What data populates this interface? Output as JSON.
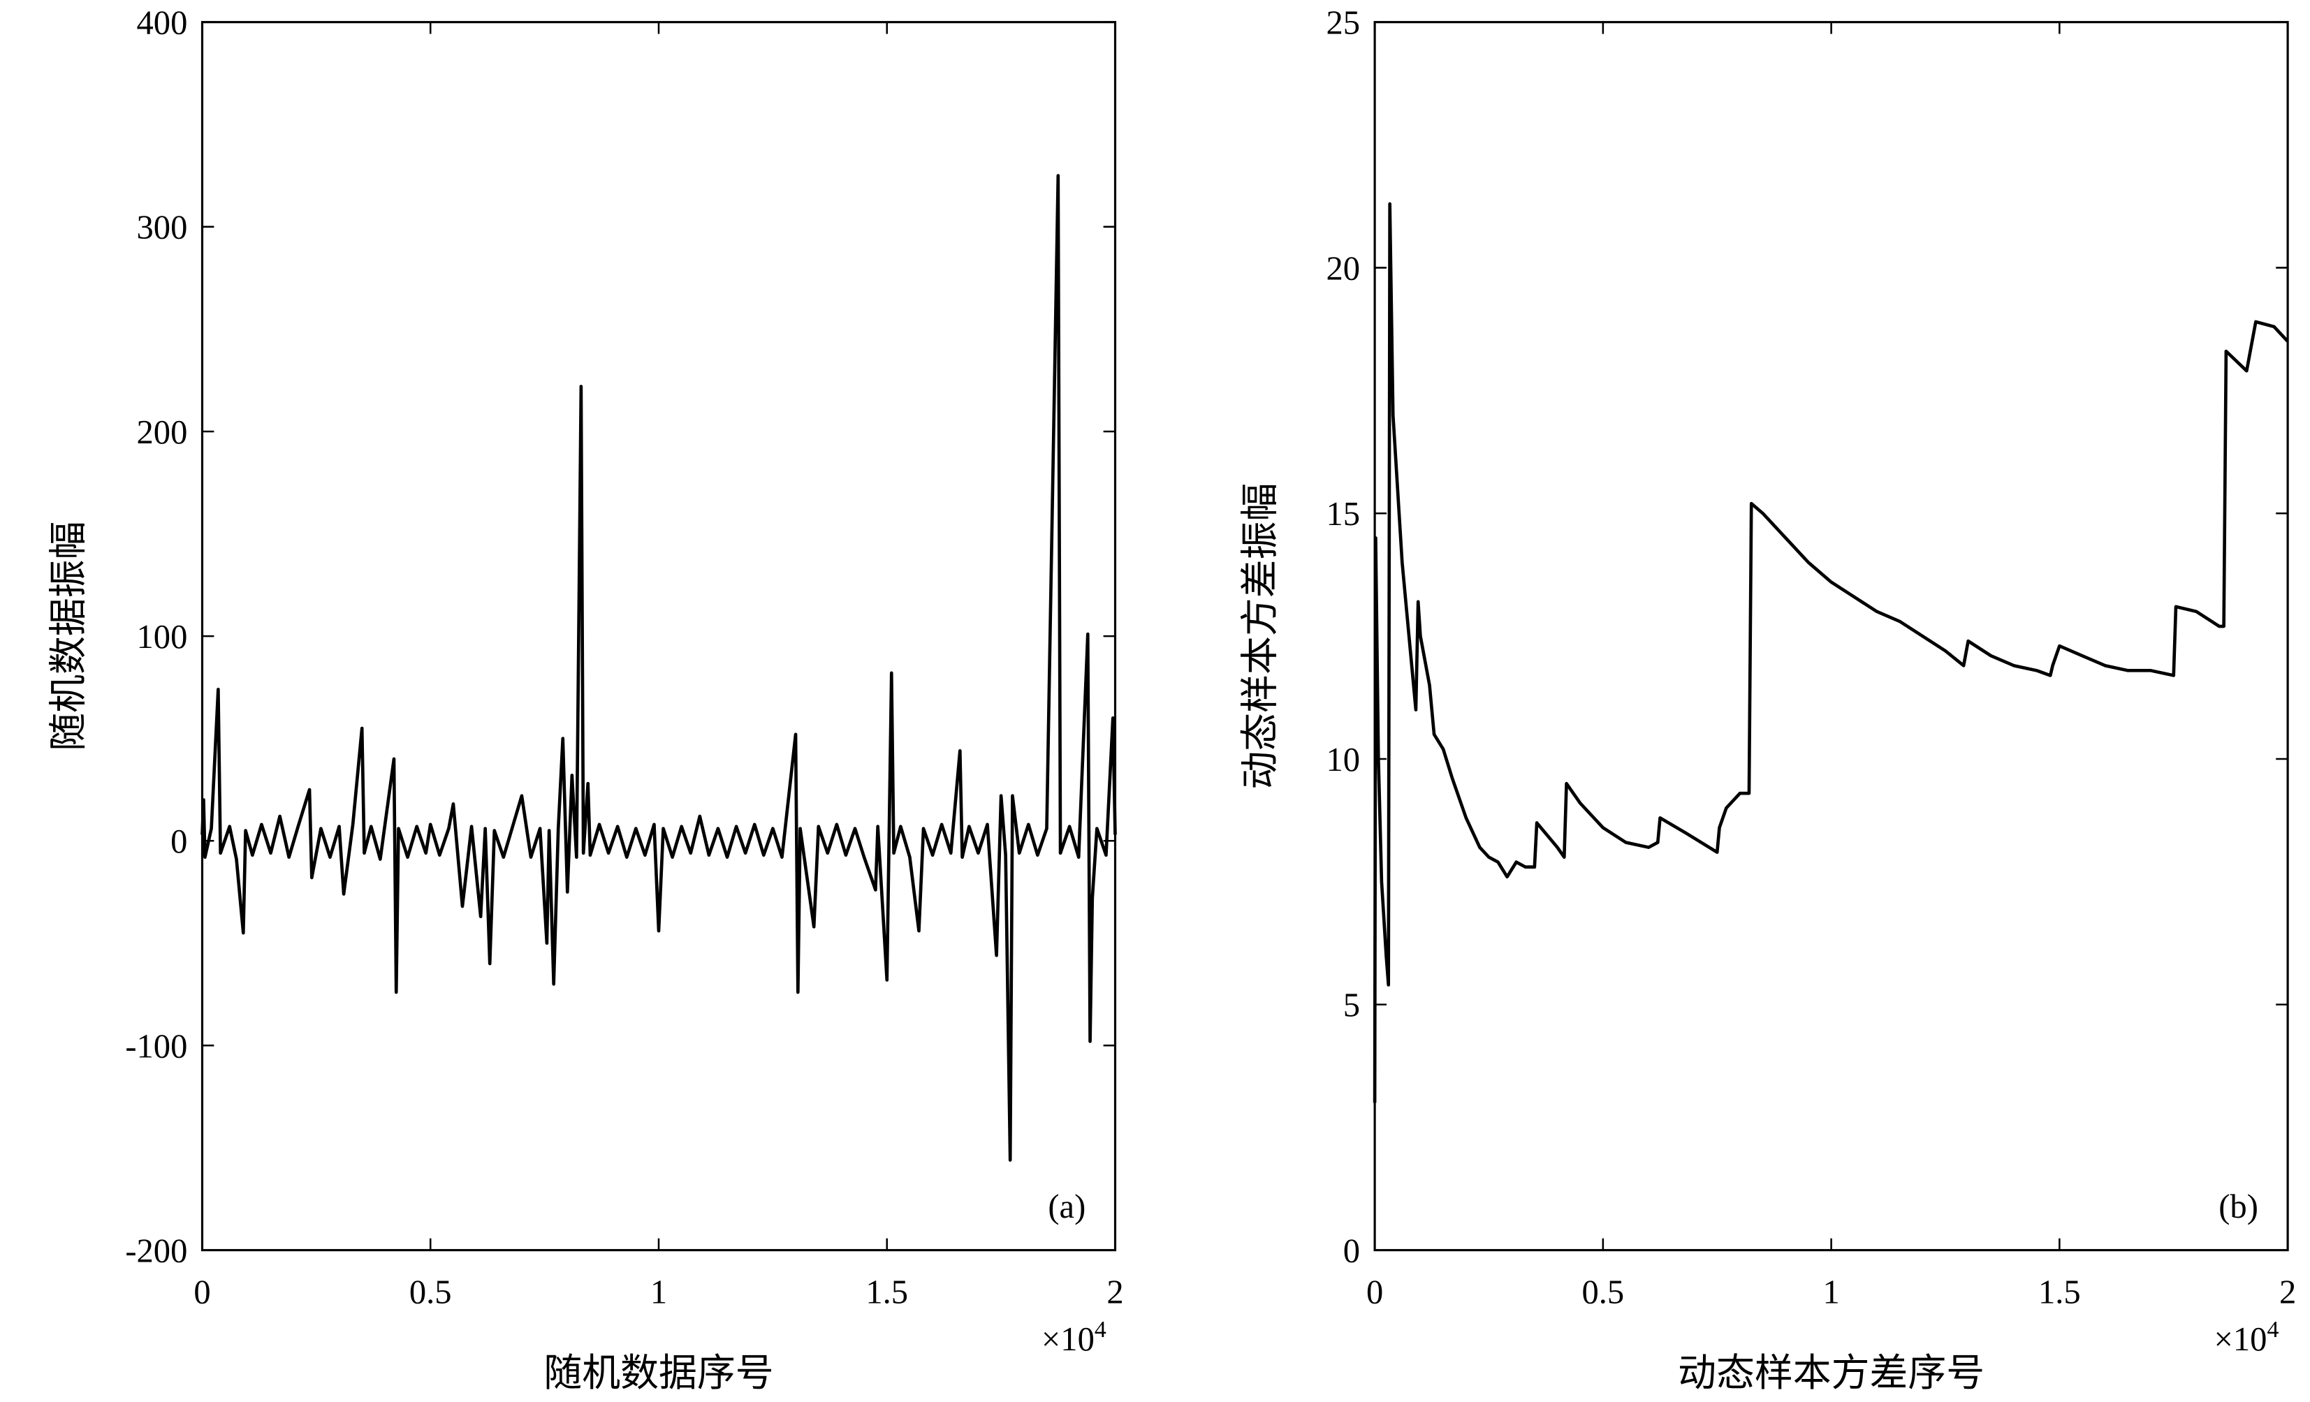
{
  "chart_data": [
    {
      "type": "line",
      "panel_label": "(a)",
      "x_label": "随机数据序号",
      "y_label": "随机数据振幅",
      "x_multiplier": {
        "base": "×10",
        "exponent": "4"
      },
      "color": "#000000",
      "xlim": [
        0,
        2
      ],
      "xticks": [
        0,
        0.5,
        1,
        1.5,
        2
      ],
      "ylim": [
        -200,
        400
      ],
      "yticks": [
        -200,
        -100,
        0,
        100,
        200,
        300,
        400
      ],
      "x": [
        0,
        0.003,
        0.006,
        0.02,
        0.035,
        0.04,
        0.06,
        0.075,
        0.09,
        0.095,
        0.11,
        0.13,
        0.15,
        0.17,
        0.19,
        0.21,
        0.235,
        0.24,
        0.26,
        0.28,
        0.3,
        0.31,
        0.33,
        0.35,
        0.355,
        0.37,
        0.39,
        0.42,
        0.425,
        0.43,
        0.45,
        0.47,
        0.49,
        0.5,
        0.52,
        0.54,
        0.55,
        0.57,
        0.59,
        0.61,
        0.62,
        0.63,
        0.64,
        0.66,
        0.68,
        0.7,
        0.72,
        0.74,
        0.755,
        0.76,
        0.77,
        0.78,
        0.79,
        0.8,
        0.81,
        0.82,
        0.83,
        0.835,
        0.845,
        0.85,
        0.87,
        0.89,
        0.91,
        0.93,
        0.95,
        0.97,
        0.99,
        1.0,
        1.01,
        1.03,
        1.05,
        1.07,
        1.09,
        1.11,
        1.13,
        1.15,
        1.17,
        1.19,
        1.21,
        1.23,
        1.25,
        1.27,
        1.3,
        1.305,
        1.31,
        1.34,
        1.35,
        1.37,
        1.39,
        1.41,
        1.43,
        1.45,
        1.475,
        1.48,
        1.5,
        1.51,
        1.515,
        1.53,
        1.55,
        1.57,
        1.58,
        1.6,
        1.62,
        1.64,
        1.66,
        1.665,
        1.68,
        1.7,
        1.72,
        1.74,
        1.75,
        1.76,
        1.77,
        1.775,
        1.79,
        1.81,
        1.83,
        1.85,
        1.875,
        1.88,
        1.9,
        1.92,
        1.94,
        1.945,
        1.95,
        1.96,
        1.98,
        1.995,
        2.0
      ],
      "values": [
        3,
        20,
        -8,
        6,
        74,
        -6,
        7,
        -9,
        -45,
        5,
        -7,
        8,
        -6,
        12,
        -8,
        7,
        25,
        -18,
        6,
        -8,
        7,
        -26,
        8,
        55,
        -6,
        7,
        -9,
        40,
        -74,
        6,
        -8,
        7,
        -6,
        8,
        -7,
        6,
        18,
        -32,
        7,
        -37,
        6,
        -60,
        5,
        -8,
        7,
        22,
        -8,
        6,
        -50,
        5,
        -70,
        6,
        50,
        -25,
        32,
        -8,
        222,
        -6,
        28,
        -7,
        8,
        -6,
        7,
        -8,
        6,
        -7,
        8,
        -44,
        6,
        -8,
        7,
        -6,
        12,
        -7,
        6,
        -8,
        7,
        -6,
        8,
        -7,
        6,
        -8,
        52,
        -74,
        6,
        -42,
        7,
        -6,
        8,
        -7,
        6,
        -8,
        -24,
        7,
        -68,
        82,
        -6,
        7,
        -8,
        -44,
        6,
        -7,
        8,
        -6,
        44,
        -8,
        7,
        -6,
        8,
        -56,
        22,
        -7,
        -156,
        22,
        -6,
        8,
        -7,
        6,
        325,
        -6,
        7,
        -8,
        101,
        -98,
        -28,
        6,
        -7,
        60,
        3
      ]
    },
    {
      "type": "line",
      "panel_label": "(b)",
      "x_label": "动态样本方差序号",
      "y_label": "动态样本方差振幅",
      "x_multiplier": {
        "base": "×10",
        "exponent": "4"
      },
      "color": "#000000",
      "xlim": [
        0,
        2
      ],
      "xticks": [
        0,
        0.5,
        1,
        1.5,
        2
      ],
      "ylim": [
        0,
        25
      ],
      "yticks": [
        0,
        5,
        10,
        15,
        20,
        25
      ],
      "x": [
        0,
        0.002,
        0.008,
        0.015,
        0.025,
        0.03,
        0.033,
        0.04,
        0.06,
        0.08,
        0.09,
        0.095,
        0.1,
        0.12,
        0.13,
        0.15,
        0.17,
        0.2,
        0.23,
        0.25,
        0.27,
        0.29,
        0.31,
        0.33,
        0.35,
        0.355,
        0.4,
        0.415,
        0.42,
        0.45,
        0.5,
        0.55,
        0.6,
        0.62,
        0.625,
        0.68,
        0.75,
        0.755,
        0.77,
        0.8,
        0.82,
        0.825,
        0.85,
        0.9,
        0.95,
        1.0,
        1.05,
        1.1,
        1.15,
        1.2,
        1.25,
        1.29,
        1.3,
        1.35,
        1.4,
        1.45,
        1.48,
        1.485,
        1.5,
        1.55,
        1.6,
        1.65,
        1.7,
        1.75,
        1.755,
        1.8,
        1.85,
        1.86,
        1.865,
        1.91,
        1.93,
        1.97,
        2.0
      ],
      "values": [
        3,
        14.5,
        10,
        7.5,
        6,
        5.4,
        21.3,
        17,
        14,
        12,
        11,
        13.2,
        12.5,
        11.5,
        10.5,
        10.2,
        9.6,
        8.8,
        8.2,
        8.0,
        7.9,
        7.6,
        7.9,
        7.8,
        7.8,
        8.7,
        8.2,
        8.0,
        9.5,
        9.1,
        8.6,
        8.3,
        8.2,
        8.3,
        8.8,
        8.5,
        8.1,
        8.6,
        9.0,
        9.3,
        9.3,
        15.2,
        15.0,
        14.5,
        14.0,
        13.6,
        13.3,
        13.0,
        12.8,
        12.5,
        12.2,
        11.9,
        12.4,
        12.1,
        11.9,
        11.8,
        11.7,
        11.9,
        12.3,
        12.1,
        11.9,
        11.8,
        11.8,
        11.7,
        13.1,
        13.0,
        12.7,
        12.7,
        18.3,
        17.9,
        18.9,
        18.8,
        18.5
      ]
    }
  ]
}
